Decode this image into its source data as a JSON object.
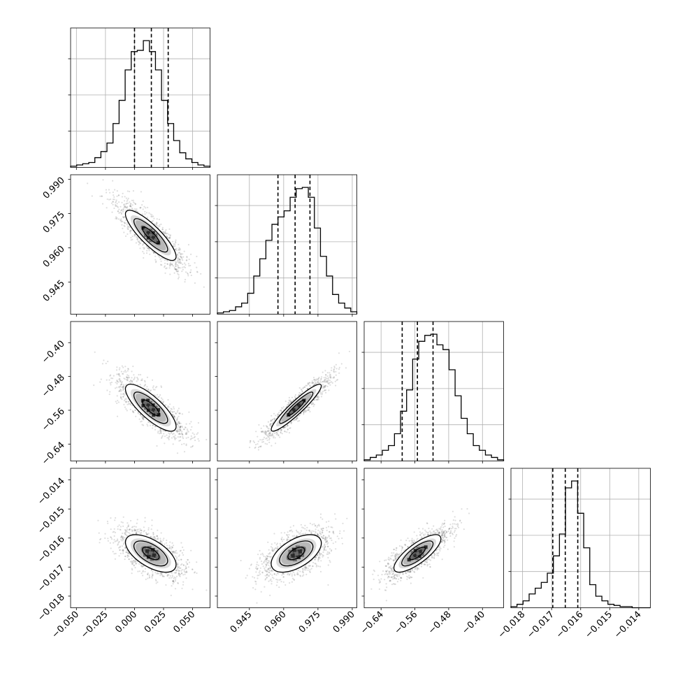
{
  "chart_data": {
    "type": "corner",
    "parameters": [
      {
        "range": [
          -0.055,
          0.065
        ],
        "tick_values": [
          -0.05,
          -0.025,
          0.0,
          0.025,
          0.05
        ],
        "tick_labels": [
          "−0.050",
          "−0.025",
          "0.000",
          "0.025",
          "0.050"
        ],
        "quantiles": [
          0.0,
          0.0145,
          0.029
        ],
        "histogram": [
          1,
          2,
          3,
          4,
          8,
          13,
          20,
          36,
          55,
          80,
          95,
          96,
          104,
          95,
          80,
          55,
          36,
          22,
          12,
          7,
          4,
          2,
          1
        ]
      },
      {
        "range": [
          0.931,
          0.992
        ],
        "tick_values": [
          0.945,
          0.96,
          0.975,
          0.99
        ],
        "tick_labels": [
          "0.945",
          "0.960",
          "0.975",
          "0.990"
        ],
        "quantiles": [
          0.9575,
          0.965,
          0.9715
        ],
        "histogram": [
          1,
          2,
          3,
          6,
          9,
          17,
          31,
          45,
          60,
          73,
          79,
          84,
          95,
          102,
          103,
          95,
          70,
          47,
          31,
          16,
          9,
          5,
          2
        ]
      },
      {
        "range": [
          -0.68,
          -0.35
        ],
        "tick_values": [
          -0.64,
          -0.56,
          -0.48,
          -0.4
        ],
        "tick_labels": [
          "−0.64",
          "−0.56",
          "−0.48",
          "−0.40"
        ],
        "quantiles": [
          -0.59,
          -0.554,
          -0.517
        ],
        "histogram": [
          1,
          3,
          5,
          9,
          13,
          23,
          42,
          60,
          86,
          101,
          106,
          107,
          98,
          94,
          77,
          55,
          36,
          23,
          13,
          9,
          5,
          3,
          1
        ]
      },
      {
        "range": [
          -0.0184,
          -0.0136
        ],
        "tick_values": [
          -0.018,
          -0.017,
          -0.016,
          -0.015,
          -0.014
        ],
        "tick_labels": [
          "−0.018",
          "−0.017",
          "−0.016",
          "−0.015",
          "−0.014"
        ],
        "quantiles": [
          -0.01696,
          -0.01653,
          -0.0161
        ],
        "histogram": [
          1,
          3,
          6,
          12,
          17,
          22,
          30,
          45,
          64,
          104,
          110,
          82,
          52,
          20,
          10,
          6,
          3,
          2,
          1,
          1,
          0,
          0,
          0
        ]
      }
    ],
    "pairs": [
      {
        "row": 1,
        "col": 0,
        "center": [
          0.014,
          0.9655
        ],
        "std": [
          0.0145,
          0.0073
        ],
        "corr": -0.85
      },
      {
        "row": 2,
        "col": 0,
        "center": [
          0.014,
          -0.554
        ],
        "std": [
          0.0145,
          0.037
        ],
        "corr": -0.8
      },
      {
        "row": 2,
        "col": 1,
        "center": [
          0.9655,
          -0.554
        ],
        "std": [
          0.0073,
          0.037
        ],
        "corr": 0.93
      },
      {
        "row": 3,
        "col": 0,
        "center": [
          0.014,
          -0.01653
        ],
        "std": [
          0.0145,
          0.00043
        ],
        "corr": -0.6
      },
      {
        "row": 3,
        "col": 1,
        "center": [
          0.9655,
          -0.01653
        ],
        "std": [
          0.0073,
          0.00043
        ],
        "corr": 0.55
      },
      {
        "row": 3,
        "col": 2,
        "center": [
          -0.554,
          -0.01653
        ],
        "std": [
          0.037,
          0.00043
        ],
        "corr": 0.78
      }
    ],
    "histogram_ticks": 3,
    "grid": true,
    "contour_levels": [
      0.5,
      1.0,
      1.5
    ]
  }
}
